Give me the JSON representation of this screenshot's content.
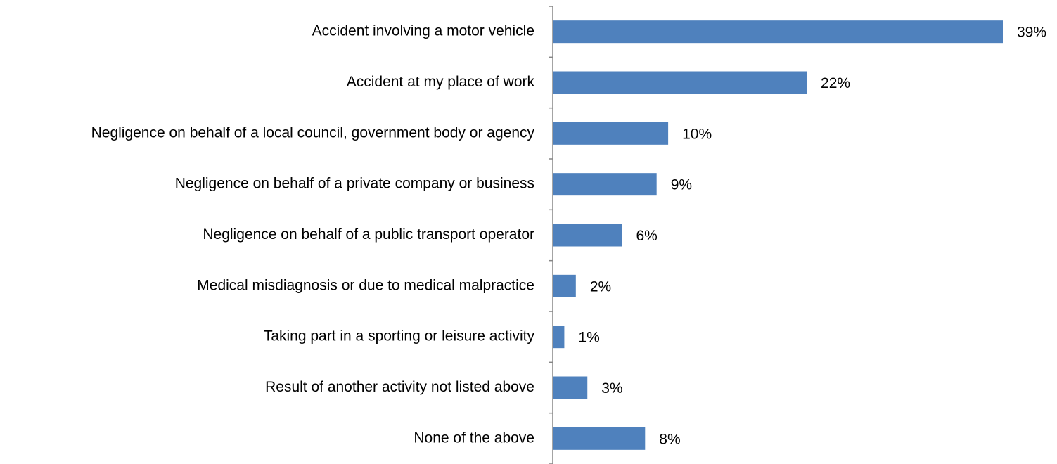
{
  "chart_data": {
    "type": "bar",
    "orientation": "horizontal",
    "categories": [
      "Accident involving a motor vehicle",
      "Accident at my place of work",
      "Negligence on behalf of a local council, government body or agency",
      "Negligence on behalf of a private company or business",
      "Negligence on behalf of a public transport operator",
      "Medical misdiagnosis or due to medical malpractice",
      "Taking part in a sporting or leisure activity",
      "Result of another activity not listed above",
      "None of the above"
    ],
    "values": [
      39,
      22,
      10,
      9,
      6,
      2,
      1,
      3,
      8
    ],
    "value_labels": [
      "39%",
      "22%",
      "10%",
      "9%",
      "6%",
      "2%",
      "1%",
      "3%",
      "8%"
    ],
    "color": "#4f81bd"
  }
}
